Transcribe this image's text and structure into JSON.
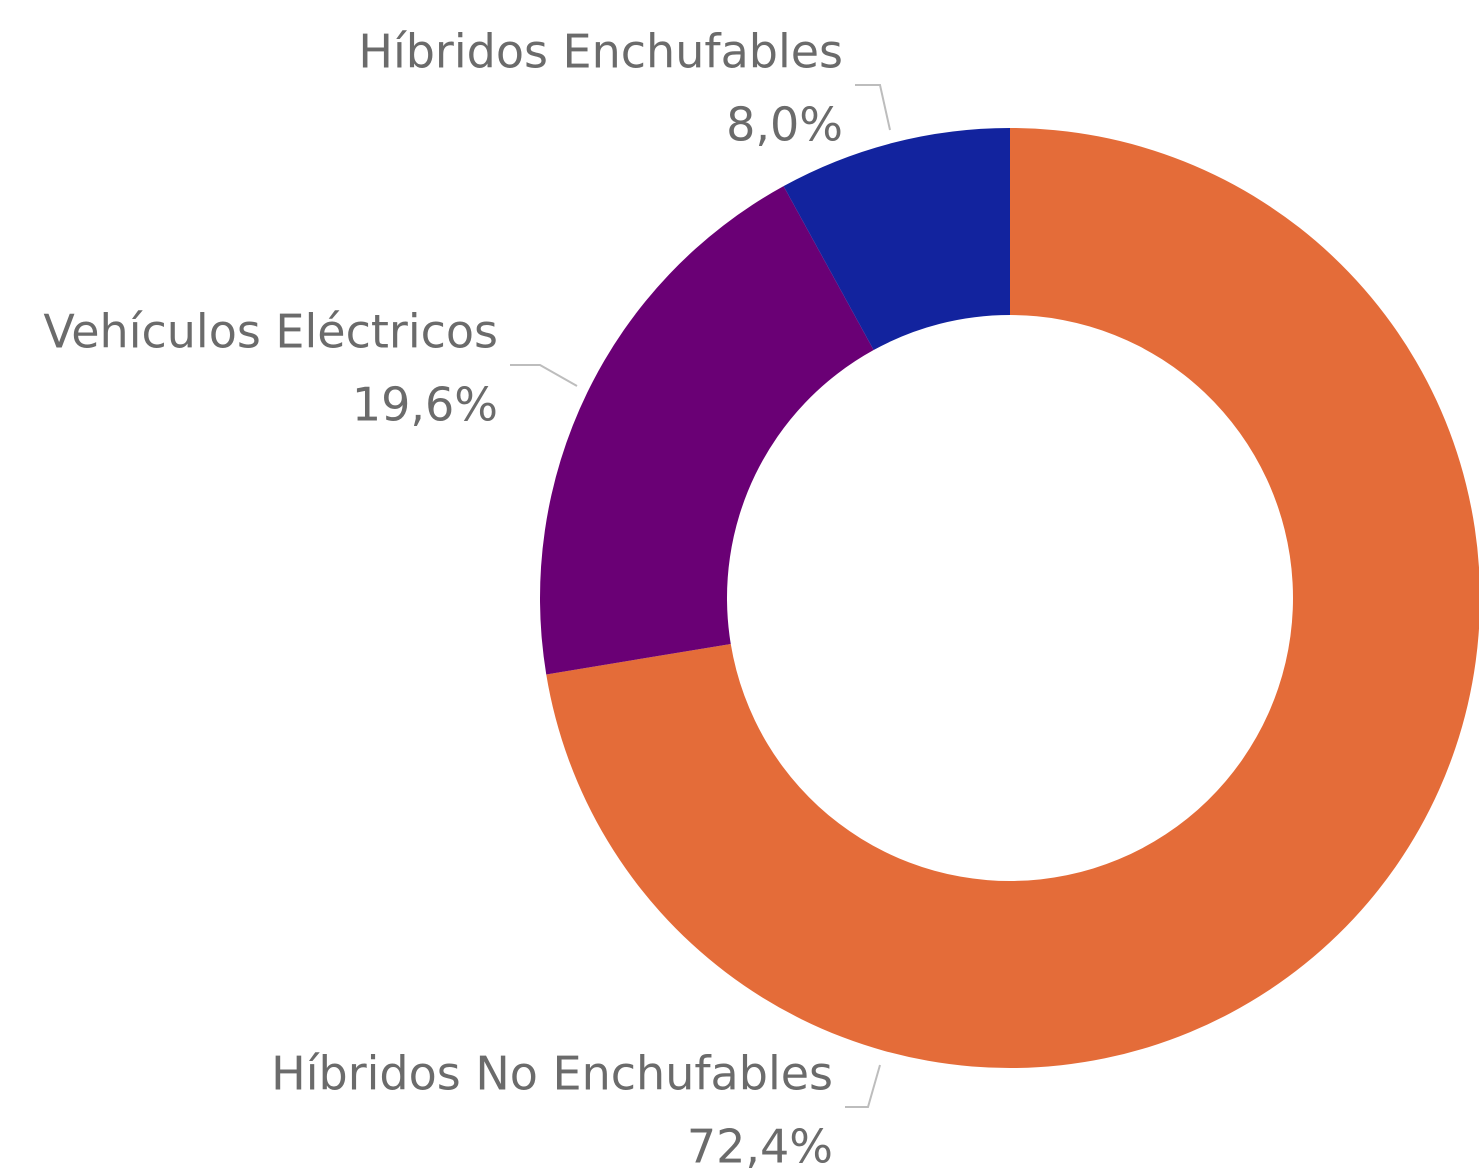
{
  "chart_data": {
    "type": "donut",
    "categories": [
      "Híbridos No Enchufables",
      "Vehículos Eléctricos",
      "Híbridos Enchufables"
    ],
    "values": [
      72.4,
      19.6,
      8.0
    ],
    "value_labels": [
      "72,4%",
      "19,6%",
      "8,0%"
    ],
    "colors": [
      "#e46c39",
      "#6a0075",
      "#12239e"
    ]
  }
}
